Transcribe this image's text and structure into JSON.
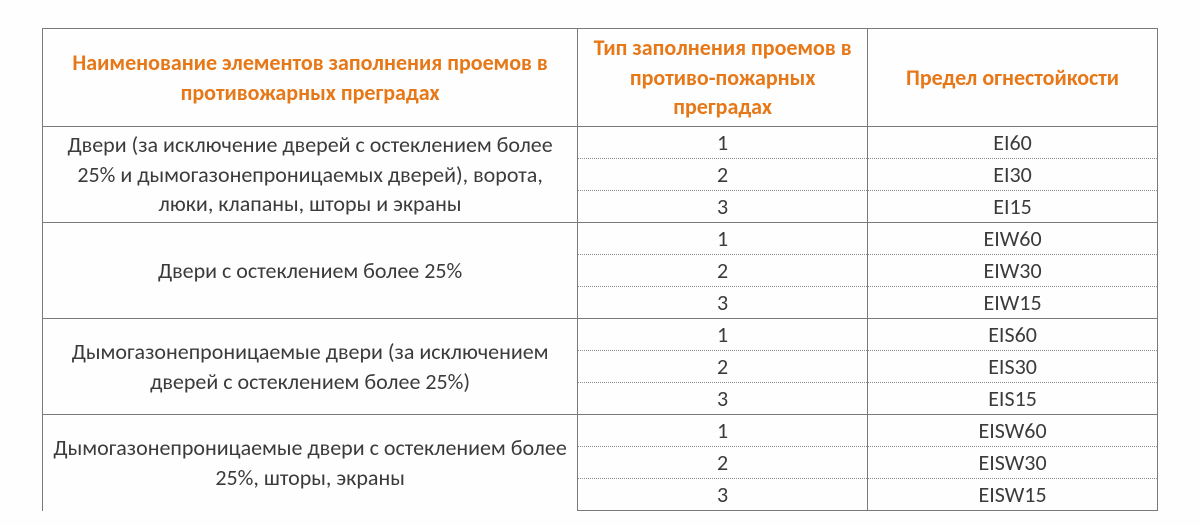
{
  "table": {
    "header_color": "#e77818",
    "body_text_color": "#3b3b3b",
    "border_color": "#7a7a7a",
    "dotted_color": "#8a8a8a",
    "background_color": "#fefefe",
    "font_family": "Calibri",
    "header_fontsize_pt": 16,
    "body_fontsize_pt": 16,
    "column_widths_pct": [
      48,
      26,
      26
    ],
    "columns": [
      "Наименование элементов заполнения проемов в противожарных преградах",
      "Тип заполнения проемов в  противо-пожарных преградах",
      "Предел огнестойкости"
    ],
    "groups": [
      {
        "description": "Двери (за исключение дверей с остеклением более 25% и дымогазонепроницаемых дверей), ворота, люки, клапаны, шторы и экраны",
        "rows": [
          {
            "type": "1",
            "limit": "EI60"
          },
          {
            "type": "2",
            "limit": "EI30"
          },
          {
            "type": "3",
            "limit": "EI15"
          }
        ]
      },
      {
        "description": "Двери с остеклением более 25%",
        "rows": [
          {
            "type": "1",
            "limit": "EIW60"
          },
          {
            "type": "2",
            "limit": "EIW30"
          },
          {
            "type": "3",
            "limit": "EIW15"
          }
        ]
      },
      {
        "description": "Дымогазонепроницаемые двери (за исключением дверей с остеклением более 25%)",
        "rows": [
          {
            "type": "1",
            "limit": "EIS60"
          },
          {
            "type": "2",
            "limit": "EIS30"
          },
          {
            "type": "3",
            "limit": "EIS15"
          }
        ]
      },
      {
        "description": "Дымогазонепроницаемые двери с остеклением более 25%, шторы, экраны",
        "rows": [
          {
            "type": "1",
            "limit": "EISW60"
          },
          {
            "type": "2",
            "limit": "EISW30"
          },
          {
            "type": "3",
            "limit": "EISW15"
          }
        ]
      }
    ]
  }
}
